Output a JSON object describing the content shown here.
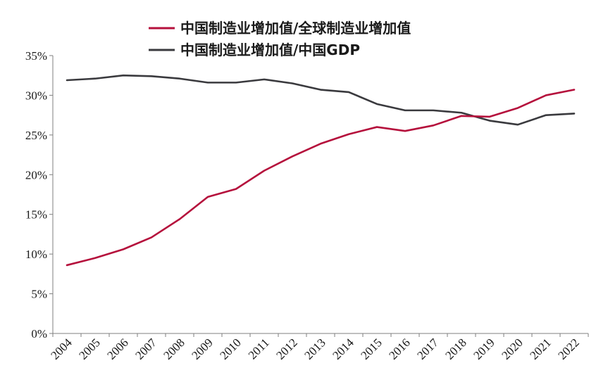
{
  "chart_data": {
    "type": "line",
    "x": [
      "2004",
      "2005",
      "2006",
      "2007",
      "2008",
      "2009",
      "2010",
      "2011",
      "2012",
      "2013",
      "2014",
      "2015",
      "2016",
      "2017",
      "2018",
      "2019",
      "2020",
      "2021",
      "2022"
    ],
    "series": [
      {
        "name": "中国制造业增加值/全球制造业增加值",
        "color": "#b5103c",
        "values": [
          8.6,
          9.5,
          10.6,
          12.1,
          14.4,
          17.2,
          18.2,
          20.5,
          22.3,
          23.9,
          25.1,
          26.0,
          25.5,
          26.2,
          27.4,
          27.3,
          28.4,
          30.0,
          30.7
        ]
      },
      {
        "name": "中国制造业增加值/中国GDP",
        "color": "#3a3a3e",
        "values": [
          31.9,
          32.1,
          32.5,
          32.4,
          32.1,
          31.6,
          31.6,
          32.0,
          31.5,
          30.7,
          30.4,
          28.9,
          28.1,
          28.1,
          27.8,
          26.8,
          26.3,
          27.5,
          27.7
        ]
      }
    ],
    "y_ticks": [
      "0%",
      "5%",
      "10%",
      "15%",
      "20%",
      "25%",
      "30%",
      "35%"
    ],
    "ylim": [
      0,
      35
    ],
    "legend_position": "top-center",
    "grid": false
  }
}
